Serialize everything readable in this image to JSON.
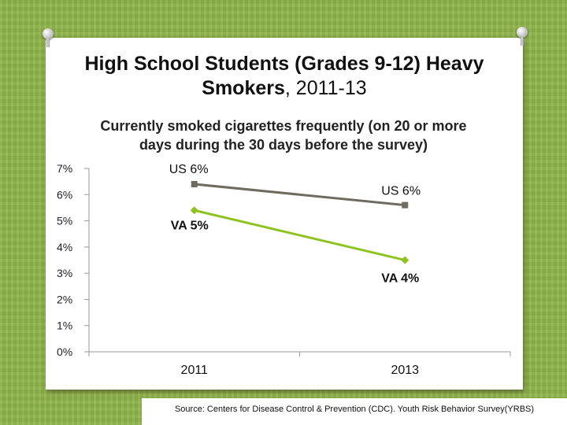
{
  "title": {
    "main": "High School Students (Grades 9-12) Heavy Smokers",
    "suffix": ", 2011-13"
  },
  "chart_data": {
    "type": "line",
    "title": "High School Students (Grades 9-12) Heavy Smokers, 2011-13",
    "subtitle": "Currently smoked cigarettes frequently (on 20 or more days during the 30 days before the survey)",
    "categories": [
      "2011",
      "2013"
    ],
    "series": [
      {
        "name": "US",
        "values": [
          6.4,
          5.6
        ],
        "labels": [
          "US  6%",
          "US  6%"
        ],
        "color": "#706b60"
      },
      {
        "name": "VA",
        "values": [
          5.4,
          3.5
        ],
        "labels": [
          "VA  5%",
          "VA  4%"
        ],
        "color": "#8dc21f"
      }
    ],
    "yticks": [
      "0%",
      "1%",
      "2%",
      "3%",
      "4%",
      "5%",
      "6%",
      "7%"
    ],
    "ylim": [
      0,
      7
    ],
    "xlabel": "",
    "ylabel": "",
    "grid": false,
    "legend": "none"
  },
  "source": "Source: Centers for Disease Control & Prevention (CDC). Youth Risk Behavior Survey(YRBS)"
}
